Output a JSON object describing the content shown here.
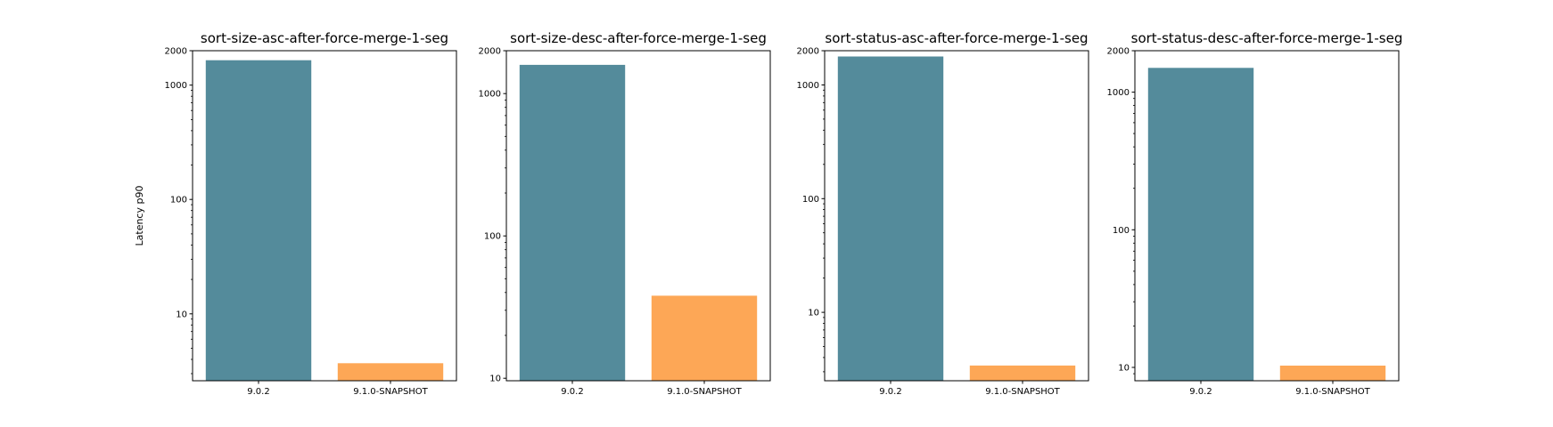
{
  "figure": {
    "background": "#ffffff",
    "ylabel": "Latency p90",
    "series_colors": {
      "9.0.2": "#548b9b",
      "9.1.0-SNAPSHOT": "#fda756"
    }
  },
  "chart_data": [
    {
      "type": "bar",
      "title": "sort-size-asc-after-force-merge-1-seg",
      "categories": [
        "9.0.2",
        "9.1.0-SNAPSHOT"
      ],
      "values": [
        1650,
        3.7
      ],
      "colors": [
        "#548b9b",
        "#fda756"
      ],
      "ylabel": "Latency p90",
      "xlabel": "",
      "yscale": "log",
      "ylim": [
        2.6,
        2000
      ],
      "yticks": [
        2000,
        1000,
        100,
        10
      ],
      "grid": false,
      "legend": "none"
    },
    {
      "type": "bar",
      "title": "sort-size-desc-after-force-merge-1-seg",
      "categories": [
        "9.0.2",
        "9.1.0-SNAPSHOT"
      ],
      "values": [
        1590,
        38
      ],
      "colors": [
        "#548b9b",
        "#fda756"
      ],
      "ylabel": "",
      "xlabel": "",
      "yscale": "log",
      "ylim": [
        9.6,
        2000
      ],
      "yticks": [
        2000,
        1000,
        100,
        10
      ],
      "grid": false,
      "legend": "none"
    },
    {
      "type": "bar",
      "title": "sort-status-asc-after-force-merge-1-seg",
      "categories": [
        "9.0.2",
        "9.1.0-SNAPSHOT"
      ],
      "values": [
        1780,
        3.4
      ],
      "colors": [
        "#548b9b",
        "#fda756"
      ],
      "ylabel": "",
      "xlabel": "",
      "yscale": "log",
      "ylim": [
        2.5,
        2000
      ],
      "yticks": [
        2000,
        1000,
        100,
        10
      ],
      "grid": false,
      "legend": "none"
    },
    {
      "type": "bar",
      "title": "sort-status-desc-after-force-merge-1-seg",
      "categories": [
        "9.0.2",
        "9.1.0-SNAPSHOT"
      ],
      "values": [
        1500,
        10.3
      ],
      "colors": [
        "#548b9b",
        "#fda756"
      ],
      "ylabel": "",
      "xlabel": "",
      "yscale": "log",
      "ylim": [
        8,
        2000
      ],
      "yticks": [
        2000,
        1000,
        100,
        10
      ],
      "grid": false,
      "legend": "none"
    }
  ]
}
